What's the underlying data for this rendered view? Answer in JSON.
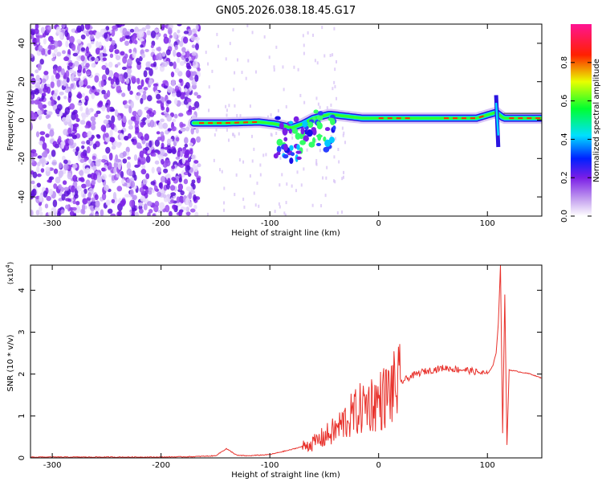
{
  "title": "GN05.2026.038.18.45.G17",
  "chart_data": [
    {
      "type": "heatmap",
      "xlabel": "Height of straight line (km)",
      "ylabel": "Frequency (Hz)",
      "xlim": [
        -320,
        150
      ],
      "ylim": [
        -50,
        50
      ],
      "x_ticks": [
        -300,
        -200,
        -100,
        0,
        100
      ],
      "y_ticks": [
        -40,
        -20,
        0,
        20,
        40
      ],
      "noise_region": {
        "x": [
          -320,
          -165
        ],
        "description_visible": false
      },
      "signal_trace": [
        {
          "x": -170,
          "y": -1.5
        },
        {
          "x": -140,
          "y": -1.5
        },
        {
          "x": -110,
          "y": -1
        },
        {
          "x": -95,
          "y": -2
        },
        {
          "x": -80,
          "y": -4
        },
        {
          "x": -70,
          "y": -2
        },
        {
          "x": -60,
          "y": 1
        },
        {
          "x": -45,
          "y": 3
        },
        {
          "x": -30,
          "y": 2
        },
        {
          "x": -15,
          "y": 1
        },
        {
          "x": 0,
          "y": 1
        },
        {
          "x": 30,
          "y": 1
        },
        {
          "x": 60,
          "y": 1
        },
        {
          "x": 90,
          "y": 1
        },
        {
          "x": 108,
          "y": 4
        },
        {
          "x": 115,
          "y": 1
        },
        {
          "x": 150,
          "y": 1
        }
      ],
      "colorbar": {
        "label": "Normalized spectral amplitude",
        "ticks": [
          "0.0",
          "0.2",
          "0.4",
          "0.6",
          "0.8"
        ],
        "tick_values": [
          0.0,
          0.2,
          0.4,
          0.6,
          0.8
        ],
        "range": [
          0,
          1
        ],
        "colors": [
          "#ffffff",
          "#8a2be2",
          "#0000ff",
          "#00ffff",
          "#00ff00",
          "#ffff00",
          "#ff0000",
          "#ff1493"
        ]
      }
    },
    {
      "type": "line",
      "xlabel": "Height of straight line (km)",
      "ylabel": "SNR (10 * v/v)",
      "y_multiplier_label": "(x10",
      "y_multiplier_exp": "4",
      "xlim": [
        -320,
        150
      ],
      "ylim": [
        0,
        4.6
      ],
      "x_ticks": [
        -300,
        -200,
        -100,
        0,
        100
      ],
      "y_ticks": [
        0,
        1,
        2,
        3,
        4
      ],
      "color": "#e8312b",
      "series": [
        {
          "x": [
            -320,
            -250,
            -200,
            -170,
            -150,
            -140,
            -130,
            -120,
            -100,
            -80,
            -60,
            -50,
            -40,
            -30,
            -20,
            -10,
            0,
            10,
            20,
            30,
            40,
            50,
            60,
            70,
            80,
            90,
            100,
            105,
            108,
            110,
            112,
            114,
            116,
            118,
            120,
            130,
            140,
            150
          ],
          "y": [
            0.02,
            0.02,
            0.02,
            0.03,
            0.05,
            0.22,
            0.06,
            0.05,
            0.08,
            0.2,
            0.35,
            0.5,
            0.65,
            0.9,
            1.1,
            1.3,
            1.35,
            1.55,
            1.8,
            1.95,
            2.05,
            2.1,
            2.15,
            2.12,
            2.1,
            2.05,
            2.0,
            2.2,
            2.5,
            3.2,
            4.6,
            0.6,
            3.9,
            0.3,
            2.1,
            2.05,
            2.0,
            1.9
          ]
        }
      ]
    }
  ]
}
